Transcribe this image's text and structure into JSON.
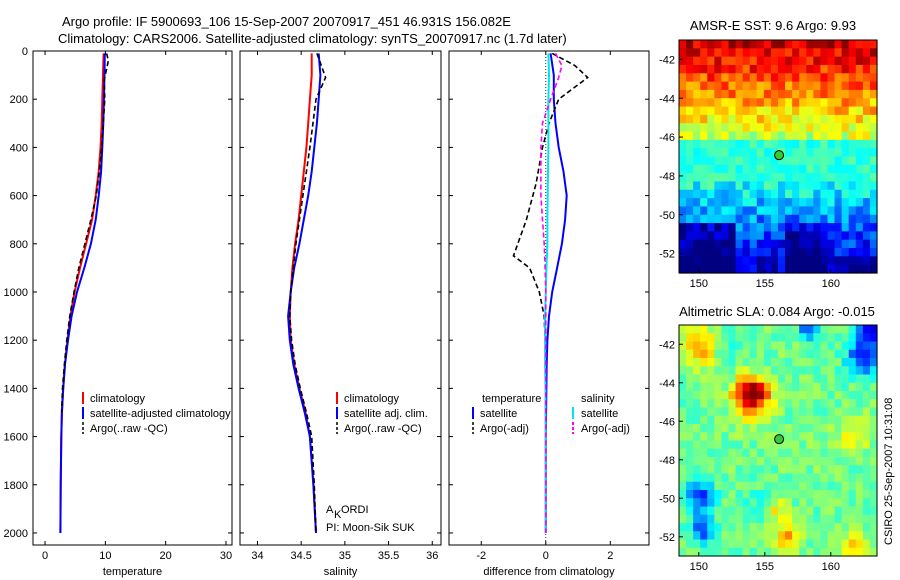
{
  "title": {
    "line1": "Argo profile: IF 5900693_106 15-Sep-2007 20070917_451 46.931S 156.082E",
    "line2": "Climatology: CARS2006. Satellite-adjusted climatology: synTS_20070917.nc (1.7d later)"
  },
  "side_label": "CSIRO 25-Sep-2007 10:31:08",
  "colors": {
    "climatology": "#ff0000",
    "satellite": "#0000ff",
    "argo": "#000000",
    "salinity_satellite": "#00e5e5",
    "salinity_argo": "#ff00ff"
  },
  "chart_data": [
    {
      "type": "line",
      "name": "temperature-profile",
      "xlabel": "temperature",
      "xlim": [
        -2,
        31
      ],
      "ylim": [
        2050,
        0
      ],
      "xticks": [
        "0",
        "10",
        "20",
        "30"
      ],
      "xtick_values": [
        0,
        10,
        20,
        30
      ],
      "yticks": [
        "0",
        "200",
        "400",
        "600",
        "800",
        "1000",
        "1200",
        "1400",
        "1600",
        "1800",
        "2000"
      ],
      "ytick_values": [
        0,
        200,
        400,
        600,
        800,
        1000,
        1200,
        1400,
        1600,
        1800,
        2000
      ],
      "legend": [
        "climatology",
        "satellite-adjusted climatology",
        "Argo(..raw -QC)"
      ],
      "series": [
        {
          "name": "climatology",
          "style": "solid",
          "color": "#ff0000",
          "x": [
            9.7,
            9.6,
            9.5,
            9.4,
            9.2,
            8.9,
            8.4,
            7.8,
            6.8,
            5.8,
            4.9,
            4.2,
            3.7,
            3.3,
            3.0,
            2.8,
            2.7,
            2.6,
            2.55
          ],
          "y": [
            10,
            100,
            200,
            300,
            400,
            500,
            600,
            700,
            800,
            900,
            1000,
            1100,
            1200,
            1300,
            1400,
            1500,
            1600,
            1800,
            2000
          ]
        },
        {
          "name": "satellite-adjusted climatology",
          "style": "solid",
          "color": "#0000ff",
          "x": [
            9.9,
            9.85,
            9.75,
            9.65,
            9.5,
            9.3,
            8.9,
            8.4,
            7.6,
            6.5,
            5.3,
            4.4,
            3.8,
            3.3,
            3.0,
            2.8,
            2.7,
            2.6,
            2.55
          ],
          "y": [
            10,
            100,
            200,
            300,
            400,
            500,
            600,
            700,
            800,
            900,
            1000,
            1100,
            1200,
            1300,
            1400,
            1500,
            1600,
            1800,
            2000
          ]
        },
        {
          "name": "Argo(..raw -QC)",
          "style": "dashed",
          "color": "#000000",
          "x": [
            10.2,
            10.5,
            9.8,
            9.9,
            9.4,
            9.0,
            8.5,
            7.6,
            6.6,
            5.6,
            4.8,
            4.1,
            3.6,
            3.2,
            2.9,
            2.75
          ],
          "y": [
            10,
            40,
            120,
            200,
            400,
            500,
            600,
            700,
            800,
            900,
            1000,
            1100,
            1200,
            1300,
            1400,
            1500
          ]
        }
      ]
    },
    {
      "type": "line",
      "name": "salinity-profile",
      "xlabel": "salinity",
      "xlim": [
        33.8,
        36.1
      ],
      "ylim": [
        2050,
        0
      ],
      "xticks": [
        "34",
        "34.5",
        "35",
        "35.5",
        "36"
      ],
      "xtick_values": [
        34,
        34.5,
        35,
        35.5,
        36
      ],
      "yticks": [],
      "legend": [
        "climatology",
        "satellite adj. clim.",
        "Argo(..raw -QC)"
      ],
      "annotations": [
        "A",
        "K",
        "ORDI",
        "PI: Moon-Sik SUK"
      ],
      "series": [
        {
          "name": "climatology",
          "style": "solid",
          "color": "#ff0000",
          "x": [
            34.62,
            34.62,
            34.6,
            34.58,
            34.56,
            34.53,
            34.5,
            34.47,
            34.43,
            34.4,
            34.38,
            34.37,
            34.38,
            34.42,
            34.48,
            34.55,
            34.6,
            34.64,
            34.67
          ],
          "y": [
            10,
            100,
            200,
            300,
            400,
            500,
            600,
            700,
            800,
            900,
            1000,
            1100,
            1200,
            1300,
            1400,
            1500,
            1600,
            1800,
            2000
          ]
        },
        {
          "name": "satellite adj. clim.",
          "style": "solid",
          "color": "#0000ff",
          "x": [
            34.7,
            34.72,
            34.7,
            34.68,
            34.65,
            34.62,
            34.58,
            34.53,
            34.48,
            34.42,
            34.38,
            34.35,
            34.37,
            34.41,
            34.47,
            34.54,
            34.6,
            34.64,
            34.67
          ],
          "y": [
            10,
            100,
            200,
            300,
            400,
            500,
            600,
            700,
            800,
            900,
            1000,
            1100,
            1200,
            1300,
            1400,
            1500,
            1600,
            1800,
            2000
          ]
        },
        {
          "name": "Argo(..raw -QC)",
          "style": "dashed",
          "color": "#000000",
          "x": [
            34.68,
            34.72,
            34.78,
            34.67,
            34.6,
            34.56,
            34.52,
            34.48,
            34.44,
            34.41,
            34.38,
            34.37,
            34.39,
            34.43,
            34.49,
            34.56,
            34.62,
            34.65,
            34.67
          ],
          "y": [
            10,
            50,
            110,
            200,
            400,
            500,
            600,
            700,
            800,
            900,
            1000,
            1100,
            1200,
            1300,
            1400,
            1500,
            1600,
            1800,
            2000
          ]
        }
      ]
    },
    {
      "type": "line",
      "name": "difference-profile",
      "xlabel": "difference from climatology",
      "xlim": [
        -3,
        3.2
      ],
      "ylim": [
        2050,
        0
      ],
      "xticks": [
        "-2",
        "0",
        "2"
      ],
      "xtick_values": [
        -2,
        0,
        2
      ],
      "yticks": [],
      "legend_left_title": "temperature",
      "legend_right_title": "salinity",
      "legend_left": [
        "satellite",
        "Argo(-adj)"
      ],
      "legend_right": [
        "satellite",
        "Argo(-adj)"
      ],
      "series": [
        {
          "name": "temperature satellite",
          "style": "solid",
          "color": "#0000ff",
          "x": [
            0.15,
            0.25,
            0.25,
            0.3,
            0.4,
            0.55,
            0.65,
            0.6,
            0.5,
            0.35,
            0.2,
            0.1,
            0.05,
            0.03,
            0.02,
            0.01,
            0.0,
            0.0,
            0.0
          ],
          "y": [
            10,
            100,
            200,
            300,
            400,
            500,
            600,
            700,
            800,
            900,
            1000,
            1100,
            1200,
            1300,
            1400,
            1500,
            1600,
            1800,
            2000
          ]
        },
        {
          "name": "temperature Argo(-adj)",
          "style": "dashed",
          "color": "#000000",
          "x": [
            0.2,
            0.9,
            1.3,
            0.4,
            0.1,
            -0.1,
            -0.3,
            -0.6,
            -1.0,
            -0.5,
            -0.2,
            -0.05,
            -0.02,
            -0.02,
            -0.01,
            -0.01,
            0.0
          ],
          "y": [
            10,
            60,
            110,
            200,
            300,
            400,
            550,
            700,
            850,
            900,
            1000,
            1100,
            1200,
            1300,
            1400,
            1500,
            1600
          ]
        },
        {
          "name": "salinity satellite",
          "style": "solid",
          "color": "#00e5e5",
          "x": [
            0.08,
            0.1,
            0.08,
            0.08,
            0.08,
            0.07,
            0.06,
            0.05,
            0.05,
            0.02,
            0.0,
            -0.02,
            -0.02,
            -0.02,
            -0.01,
            -0.01,
            0.0,
            0.0,
            0.0
          ],
          "y": [
            10,
            100,
            200,
            300,
            400,
            500,
            600,
            700,
            800,
            900,
            1000,
            1100,
            1200,
            1300,
            1400,
            1500,
            1600,
            1800,
            2000
          ]
        },
        {
          "name": "salinity Argo(-adj)",
          "style": "dashed",
          "color": "#ff00ff",
          "x": [
            0.3,
            0.5,
            0.4,
            0.15,
            -0.1,
            -0.15,
            -0.15,
            -0.15,
            -0.1,
            -0.05,
            -0.02,
            0.0,
            0.0,
            0.0,
            0.0,
            0.0,
            0.0,
            0.0,
            0.0
          ],
          "y": [
            10,
            60,
            110,
            200,
            300,
            400,
            500,
            600,
            700,
            800,
            900,
            1000,
            1100,
            1200,
            1300,
            1400,
            1500,
            1800,
            2000
          ]
        }
      ]
    },
    {
      "type": "heatmap",
      "name": "sst-map",
      "title": "AMSR-E SST: 9.6 Argo: 9.93",
      "xlim": [
        148.5,
        163.5
      ],
      "ylim": [
        -53,
        -41
      ],
      "xticks": [
        "150",
        "155",
        "160"
      ],
      "xtick_values": [
        150,
        155,
        160
      ],
      "yticks": [
        "-42",
        "-44",
        "-46",
        "-48",
        "-50",
        "-52"
      ],
      "ytick_values": [
        -42,
        -44,
        -46,
        -48,
        -50,
        -52
      ],
      "marker": {
        "lon": 156.082,
        "lat": -46.931
      }
    },
    {
      "type": "heatmap",
      "name": "sla-map",
      "title": "Altimetric SLA: 0.084 Argo: -0.015",
      "xlim": [
        148.5,
        163.5
      ],
      "ylim": [
        -53,
        -41
      ],
      "xticks": [
        "150",
        "155",
        "160"
      ],
      "xtick_values": [
        150,
        155,
        160
      ],
      "yticks": [
        "-42",
        "-44",
        "-46",
        "-48",
        "-50",
        "-52"
      ],
      "ytick_values": [
        -42,
        -44,
        -46,
        -48,
        -50,
        -52
      ],
      "marker": {
        "lon": 156.082,
        "lat": -46.931
      }
    }
  ]
}
